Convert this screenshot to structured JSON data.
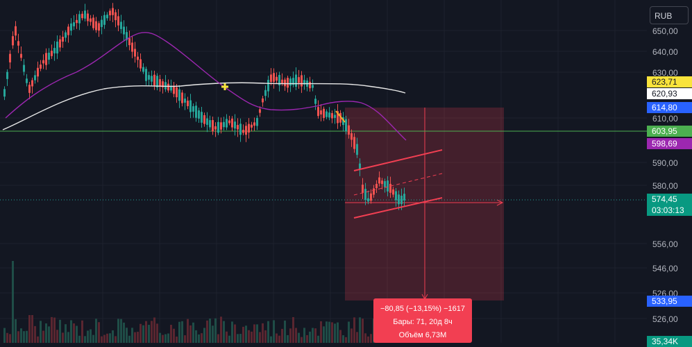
{
  "currency": "RUB",
  "axis_labels": [
    "650,00",
    "640,00",
    "630,00",
    "610,00",
    "590,00",
    "580,00",
    "556,00",
    "546,00",
    "526,00",
    "526,00"
  ],
  "price_tags": [
    {
      "text": "623,71",
      "bg": "#f9e33b",
      "fg": "#131722"
    },
    {
      "text": "620,93",
      "bg": "#ffffff",
      "fg": "#131722"
    },
    {
      "text": "614,80",
      "bg": "#2962ff",
      "fg": "#ffffff"
    },
    {
      "text": "603,95",
      "bg": "#4caf50",
      "fg": "#ffffff"
    },
    {
      "text": "598,69",
      "bg": "#9c27b0",
      "fg": "#ffffff"
    },
    {
      "text": "574,45",
      "bg": "#089981",
      "fg": "#ffffff"
    },
    {
      "text": "03:03:13",
      "bg": "#089981",
      "fg": "#ffffff"
    },
    {
      "text": "533,95",
      "bg": "#2962ff",
      "fg": "#ffffff"
    },
    {
      "text": "35,34K",
      "bg": "#089981",
      "fg": "#ffffff"
    }
  ],
  "measure": {
    "line1": "−80,85 (−13,15%) −1617",
    "line2": "Бары: 71, 20д 8ч",
    "line3": "Объём 6,73M"
  },
  "chart_data": {
    "type": "candlestick",
    "y_axis_ticks": [
      650,
      640,
      630,
      610,
      590,
      580,
      556,
      546,
      526
    ],
    "current_price": 574.45,
    "countdown": "03:03:13",
    "horizontal_level": 603.95,
    "moving_averages": [
      {
        "color": "#ffffff",
        "last_value": 620.93
      },
      {
        "color": "#9c27b0",
        "last_value": 598.69
      }
    ],
    "marker_price": 623.71,
    "measurement_top": 614.8,
    "measurement_bottom": 533.95,
    "measurement_change": -80.85,
    "measurement_percent": -13.15,
    "measurement_bars": 71,
    "volume_last": "35,34K",
    "colors": {
      "up": "#26a69a",
      "down": "#ef5350"
    }
  }
}
